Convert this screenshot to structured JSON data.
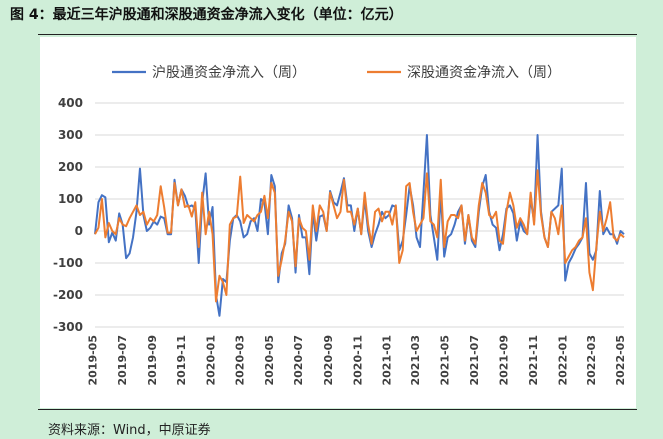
{
  "figure": {
    "title": "图 4：最近三年沪股通和深股通资金净流入变化（单位：亿元）",
    "source": "资料来源：Wind，中原证券"
  },
  "colors": {
    "hgt": "#4472C4",
    "sgt": "#ED7D31",
    "grid": "#d9d9d9",
    "background": "#cfeed8"
  },
  "chart_data": {
    "type": "line",
    "title": "",
    "xlabel": "",
    "ylabel": "",
    "ylim": [
      -300,
      400
    ],
    "yticks": [
      -300,
      -200,
      -100,
      0,
      100,
      200,
      300,
      400
    ],
    "xticks": [
      "2019-05",
      "2019-07",
      "2019-09",
      "2019-11",
      "2020-01",
      "2020-03",
      "2020-05",
      "2020-07",
      "2020-09",
      "2020-11",
      "2021-01",
      "2021-03",
      "2021-05",
      "2021-07",
      "2021-09",
      "2021-11",
      "2022-01",
      "2022-03",
      "2022-05"
    ],
    "x_range": [
      "2019-05-06",
      "2022-05-09"
    ],
    "grid": true,
    "legend": "top",
    "series": [
      {
        "name": "沪股通资金净流入（周）",
        "color_key": "hgt",
        "values": [
          -10,
          90,
          112,
          105,
          -35,
          -5,
          -30,
          55,
          20,
          -85,
          -70,
          -20,
          60,
          195,
          50,
          0,
          10,
          30,
          20,
          45,
          40,
          -10,
          -10,
          160,
          80,
          130,
          110,
          75,
          80,
          70,
          -100,
          90,
          180,
          20,
          75,
          -200,
          -265,
          -150,
          -160,
          -30,
          40,
          50,
          30,
          -20,
          -10,
          30,
          40,
          0,
          100,
          90,
          -10,
          175,
          140,
          -160,
          -70,
          -40,
          80,
          40,
          -130,
          50,
          -20,
          -20,
          -135,
          60,
          -30,
          45,
          50,
          0,
          125,
          90,
          80,
          120,
          165,
          80,
          80,
          0,
          70,
          -10,
          100,
          0,
          -50,
          -10,
          20,
          60,
          40,
          50,
          80,
          75,
          -60,
          -30,
          50,
          140,
          80,
          -20,
          -50,
          120,
          300,
          50,
          -20,
          -90,
          120,
          -80,
          -20,
          -10,
          20,
          60,
          80,
          -40,
          50,
          -30,
          -50,
          60,
          140,
          175,
          60,
          20,
          10,
          -60,
          -10,
          70,
          80,
          55,
          -30,
          30,
          0,
          -10,
          100,
          30,
          300,
          60,
          -20,
          -50,
          60,
          70,
          80,
          195,
          -155,
          -100,
          -80,
          -55,
          -40,
          -20,
          150,
          -70,
          -90,
          -60,
          125,
          -10,
          10,
          -10,
          -10,
          -40,
          0,
          -10
        ]
      },
      {
        "name": "深股通资金净流入（周）",
        "color_key": "sgt",
        "values": [
          -10,
          10,
          100,
          -20,
          25,
          0,
          -10,
          40,
          20,
          15,
          40,
          60,
          80,
          50,
          60,
          20,
          40,
          30,
          50,
          140,
          75,
          -5,
          -5,
          150,
          80,
          130,
          75,
          80,
          45,
          90,
          -50,
          120,
          -10,
          60,
          -10,
          -220,
          -140,
          -160,
          -200,
          20,
          40,
          45,
          170,
          25,
          50,
          40,
          30,
          50,
          60,
          110,
          40,
          150,
          120,
          -140,
          -90,
          -30,
          60,
          30,
          -110,
          40,
          10,
          0,
          -90,
          80,
          0,
          80,
          60,
          0,
          120,
          80,
          40,
          60,
          160,
          60,
          60,
          20,
          70,
          -10,
          120,
          20,
          -40,
          60,
          70,
          30,
          60,
          60,
          20,
          80,
          -100,
          -60,
          140,
          150,
          60,
          0,
          20,
          40,
          180,
          30,
          20,
          -20,
          160,
          -50,
          30,
          50,
          50,
          40,
          80,
          -30,
          50,
          -20,
          -40,
          80,
          150,
          120,
          50,
          40,
          60,
          -30,
          -40,
          60,
          120,
          80,
          10,
          40,
          20,
          -10,
          120,
          20,
          190,
          50,
          -20,
          -50,
          60,
          40,
          -10,
          80,
          -100,
          -80,
          -60,
          -50,
          -30,
          -20,
          40,
          -130,
          -185,
          -50,
          60,
          0,
          40,
          90,
          -20,
          -30,
          -10,
          -20
        ]
      }
    ]
  }
}
